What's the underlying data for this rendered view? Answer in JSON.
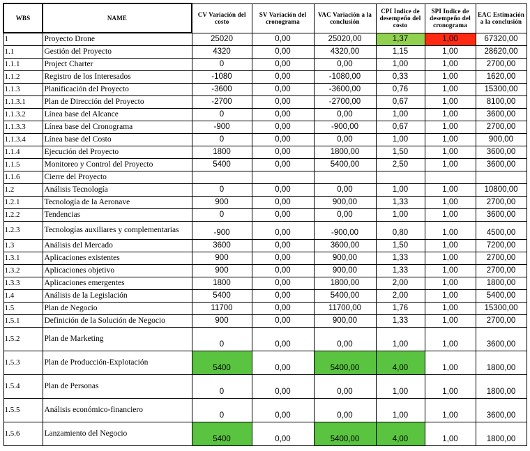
{
  "headers": {
    "wbs": "WBS",
    "name": "NAME",
    "cv": "CV Variación del costo",
    "sv": "SV Variación del cronograma",
    "vac": "VAC Variación a la conclusión",
    "cpi": "CPI Indice de desempeño del costo",
    "spi": "SPI Indice de desempeño del cronograma",
    "eac": "EAC Estimación a la conclusión"
  },
  "rows": [
    {
      "wbs": "1",
      "name": "Proyecto Drone",
      "cv": "25020",
      "sv": "0,00",
      "vac": "25020,00",
      "cpi": "1,37",
      "spi": "1,00",
      "eac": "67320,00",
      "h": "n",
      "hl": {
        "cpi": "green-light",
        "spi": "red"
      }
    },
    {
      "wbs": "1.1",
      "name": "Gestión del Proyecto",
      "cv": "4320",
      "sv": "0,00",
      "vac": "4320,00",
      "cpi": "1,15",
      "spi": "1,00",
      "eac": "28620,00",
      "h": "n"
    },
    {
      "wbs": "1.1.1",
      "name": "Project Charter",
      "cv": "0",
      "sv": "0,00",
      "vac": "0,00",
      "cpi": "1,00",
      "spi": "1,00",
      "eac": "2700,00",
      "h": "n"
    },
    {
      "wbs": "1.1.2",
      "name": "Registro de los Interesados",
      "cv": "-1080",
      "sv": "0,00",
      "vac": "-1080,00",
      "cpi": "0,33",
      "spi": "1,00",
      "eac": "1620,00",
      "h": "n"
    },
    {
      "wbs": "1.1.3",
      "name": "Planificación del Proyecto",
      "cv": "-3600",
      "sv": "0,00",
      "vac": "-3600,00",
      "cpi": "0,76",
      "spi": "1,00",
      "eac": "15300,00",
      "h": "n"
    },
    {
      "wbs": "1.1.3.1",
      "name": "Plan de Dirección del Proyecto",
      "cv": "-2700",
      "sv": "0,00",
      "vac": "-2700,00",
      "cpi": "0,67",
      "spi": "1,00",
      "eac": "8100,00",
      "h": "n"
    },
    {
      "wbs": "1.1.3.2",
      "name": "Línea base del Alcance",
      "cv": "0",
      "sv": "0,00",
      "vac": "0,00",
      "cpi": "1,00",
      "spi": "1,00",
      "eac": "3600,00",
      "h": "n"
    },
    {
      "wbs": "1.1.3.3",
      "name": "Línea base del Cronograma",
      "cv": "-900",
      "sv": "0,00",
      "vac": "-900,00",
      "cpi": "0,67",
      "spi": "1,00",
      "eac": "2700,00",
      "h": "n"
    },
    {
      "wbs": "1.1.3.4",
      "name": "Línea base del Costo",
      "cv": "0",
      "sv": "0,00",
      "vac": "0,00",
      "cpi": "1,00",
      "spi": "1,00",
      "eac": "900,00",
      "h": "n"
    },
    {
      "wbs": "1.1.4",
      "name": "Ejecución del Proyecto",
      "cv": "1800",
      "sv": "0,00",
      "vac": "1800,00",
      "cpi": "1,50",
      "spi": "1,00",
      "eac": "3600,00",
      "h": "n"
    },
    {
      "wbs": "1.1.5",
      "name": "Monitoreo y Control del Proyecto",
      "cv": "5400",
      "sv": "0,00",
      "vac": "5400,00",
      "cpi": "2,50",
      "spi": "1,00",
      "eac": "3600,00",
      "h": "n"
    },
    {
      "wbs": "1.1.6",
      "name": "Cierre del Proyecto",
      "cv": "",
      "sv": "",
      "vac": "",
      "cpi": "",
      "spi": "",
      "eac": "",
      "h": "n"
    },
    {
      "wbs": "1.2",
      "name": "Análisis Tecnología",
      "cv": "0",
      "sv": "0,00",
      "vac": "0,00",
      "cpi": "1,00",
      "spi": "1,00",
      "eac": "10800,00",
      "h": "n"
    },
    {
      "wbs": "1.2.1",
      "name": "Tecnología de la Aeronave",
      "cv": "900",
      "sv": "0,00",
      "vac": "900,00",
      "cpi": "1,33",
      "spi": "1,00",
      "eac": "2700,00",
      "h": "n"
    },
    {
      "wbs": "1.2.2",
      "name": "Tendencias",
      "cv": "0",
      "sv": "0,00",
      "vac": "0,00",
      "cpi": "1,00",
      "spi": "1,00",
      "eac": "3600,00",
      "h": "n"
    },
    {
      "wbs": "1.2.3",
      "name": "Tecnologías auxiliares y complementarias",
      "cv": "-900",
      "sv": "0,00",
      "vac": "-900,00",
      "cpi": "0,80",
      "spi": "1,00",
      "eac": "4500,00",
      "h": "t"
    },
    {
      "wbs": "1.3",
      "name": "Análisis del Mercado",
      "cv": "3600",
      "sv": "0,00",
      "vac": "3600,00",
      "cpi": "1,50",
      "spi": "1,00",
      "eac": "7200,00",
      "h": "n"
    },
    {
      "wbs": "1.3.1",
      "name": "Aplicaciones existentes",
      "cv": "900",
      "sv": "0,00",
      "vac": "900,00",
      "cpi": "1,33",
      "spi": "1,00",
      "eac": "2700,00",
      "h": "n"
    },
    {
      "wbs": "1.3.2",
      "name": "Aplicaciones objetivo",
      "cv": "900",
      "sv": "0,00",
      "vac": "900,00",
      "cpi": "1,33",
      "spi": "1,00",
      "eac": "2700,00",
      "h": "n"
    },
    {
      "wbs": "1.3.3",
      "name": "Aplicaciones emergentes",
      "cv": "1800",
      "sv": "0,00",
      "vac": "1800,00",
      "cpi": "2,00",
      "spi": "1,00",
      "eac": "1800,00",
      "h": "n"
    },
    {
      "wbs": "1.4",
      "name": "Análisis de la Legislación",
      "cv": "5400",
      "sv": "0,00",
      "vac": "5400,00",
      "cpi": "2,00",
      "spi": "1,00",
      "eac": "5400,00",
      "h": "n"
    },
    {
      "wbs": "1.5",
      "name": "Plan de Negocio",
      "cv": "11700",
      "sv": "0,00",
      "vac": "11700,00",
      "cpi": "1,76",
      "spi": "1,00",
      "eac": "15300,00",
      "h": "n"
    },
    {
      "wbs": "1.5.1",
      "name": "Definición de la Solución de Negocio",
      "cv": "900",
      "sv": "0,00",
      "vac": "900,00",
      "cpi": "1,33",
      "spi": "1,00",
      "eac": "2700,00",
      "h": "n"
    },
    {
      "wbs": "1.5.2",
      "name": "Plan de Marketing",
      "cv": "0",
      "sv": "0,00",
      "vac": "0,00",
      "cpi": "1,00",
      "spi": "1,00",
      "eac": "3600,00",
      "h": "v"
    },
    {
      "wbs": "1.5.3",
      "name": "Plan de Producción-Explotación",
      "cv": "5400",
      "sv": "0,00",
      "vac": "5400,00",
      "cpi": "4,00",
      "spi": "1,00",
      "eac": "1800,00",
      "h": "v",
      "hl": {
        "cv": "green",
        "vac": "green",
        "cpi": "green"
      }
    },
    {
      "wbs": "1.5.4",
      "name": "Plan de Personas",
      "cv": "0",
      "sv": "0,00",
      "vac": "0,00",
      "cpi": "1,00",
      "spi": "1,00",
      "eac": "1800,00",
      "h": "v"
    },
    {
      "wbs": "1.5.5",
      "name": "Análisis económico-financiero",
      "cv": "0",
      "sv": "0,00",
      "vac": "0,00",
      "cpi": "1,00",
      "spi": "1,00",
      "eac": "3600,00",
      "h": "v"
    },
    {
      "wbs": "1.5.6",
      "name": "Lanzamiento del Negocio",
      "cv": "5400",
      "sv": "0,00",
      "vac": "5400,00",
      "cpi": "4,00",
      "spi": "1,00",
      "eac": "1800,00",
      "h": "v",
      "hl": {
        "cv": "green",
        "vac": "green",
        "cpi": "green"
      }
    }
  ]
}
